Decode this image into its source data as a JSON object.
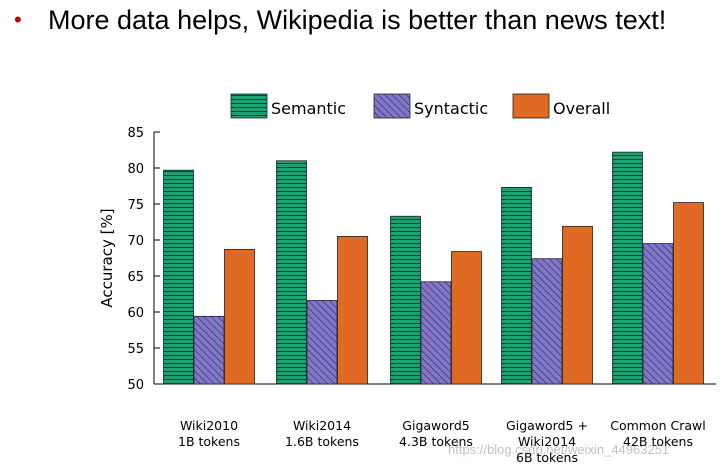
{
  "headline": {
    "bullet": "•",
    "text": "More data helps, Wikipedia is better than news text!"
  },
  "colors": {
    "semantic": "#1f9f74",
    "syntactic": "#7f77c7",
    "overall": "#e06a23",
    "bullet": "#c00000"
  },
  "chart_data": {
    "type": "bar",
    "ylabel": "Accuracy [%]",
    "ylim": [
      50,
      85
    ],
    "yticks": [
      50,
      55,
      60,
      65,
      70,
      75,
      80,
      85
    ],
    "legend_position": "top-center",
    "categories": [
      [
        "Wiki2010",
        "1B tokens"
      ],
      [
        "Wiki2014",
        "1.6B tokens"
      ],
      [
        "Gigaword5",
        "4.3B tokens"
      ],
      [
        "Gigaword5 +",
        "Wiki2014",
        "6B tokens"
      ],
      [
        "Common Crawl",
        "42B tokens"
      ]
    ],
    "series": [
      {
        "name": "Semantic",
        "values": [
          79.7,
          81.0,
          73.3,
          77.3,
          82.2
        ]
      },
      {
        "name": "Syntactic",
        "values": [
          59.4,
          61.6,
          64.2,
          67.4,
          69.5
        ]
      },
      {
        "name": "Overall",
        "values": [
          68.7,
          70.5,
          68.4,
          71.9,
          75.2
        ]
      }
    ]
  },
  "watermark": "https://blog.csdn.net/weixin_44963251"
}
